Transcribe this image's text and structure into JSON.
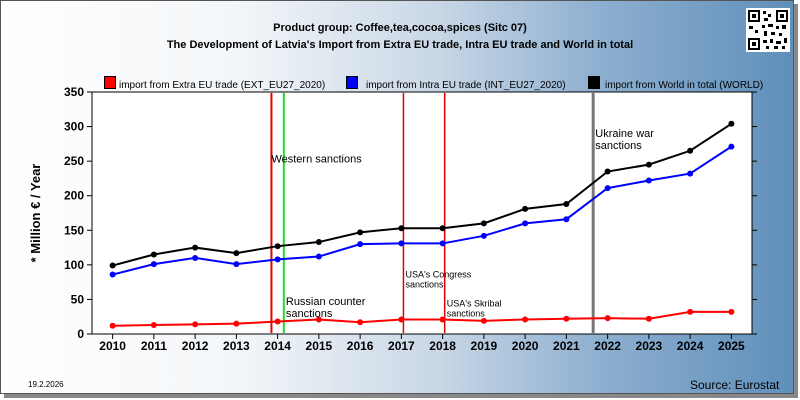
{
  "header": {
    "title_line1": "Product group: Coffee,tea,cocoa,spices (Sitc 07)",
    "title_line2": "The Development of Latvia's Import from Extra EU trade, Intra EU trade and World in total"
  },
  "footer": {
    "date": "19.2.2026",
    "source": "Source: Eurostat"
  },
  "qr_icon": "qr-code-icon",
  "chart_data": {
    "type": "line",
    "ylabel": "* Million € / Year",
    "xlabel": "",
    "ylim": [
      0,
      350
    ],
    "yticks": [
      0,
      50,
      100,
      150,
      200,
      250,
      300,
      350
    ],
    "grid": false,
    "legend_position": "top",
    "categories": [
      "2010",
      "2011",
      "2012",
      "2013",
      "2014",
      "2015",
      "2016",
      "2017",
      "2018",
      "2019",
      "2020",
      "2021",
      "2022",
      "2023",
      "2024",
      "2025"
    ],
    "series": [
      {
        "name": "import from Extra EU trade (EXT_EU27_2020)",
        "color": "#ff0000",
        "values": [
          12,
          13,
          14,
          15,
          18,
          21,
          17,
          21,
          21,
          19,
          21,
          22,
          23,
          22,
          32,
          32
        ]
      },
      {
        "name": "import from Intra EU trade (INT_EU27_2020)",
        "color": "#0000ff",
        "values": [
          86,
          101,
          110,
          101,
          108,
          112,
          130,
          131,
          131,
          142,
          160,
          166,
          211,
          222,
          232,
          271
        ]
      },
      {
        "name": "import from World in total (WORLD)",
        "color": "#000000",
        "values": [
          99,
          115,
          125,
          117,
          127,
          133,
          147,
          153,
          153,
          160,
          181,
          188,
          235,
          245,
          265,
          304
        ]
      }
    ],
    "events": [
      {
        "x": 2013.85,
        "color": "#e00000",
        "width": 2,
        "label": "Western sanctions",
        "label_x": 2013.85,
        "label_y": 248
      },
      {
        "x": 2014.15,
        "color": "#22dd22",
        "width": 2,
        "label": "Russian counter sanctions",
        "label_x": 2014.2,
        "label_y": 42
      },
      {
        "x": 2017.05,
        "color": "#e00000",
        "width": 1.5,
        "label": "USA's Congress sanctions",
        "label_x": 2017.1,
        "label_y": 82
      },
      {
        "x": 2018.05,
        "color": "#e00000",
        "width": 1.5,
        "label": "USA's Skribal sanctions",
        "label_x": 2018.1,
        "label_y": 40
      },
      {
        "x": 2021.65,
        "color": "#777777",
        "width": 3,
        "label": "Ukraine war sanctions",
        "label_x": 2021.7,
        "label_y": 285
      }
    ]
  }
}
